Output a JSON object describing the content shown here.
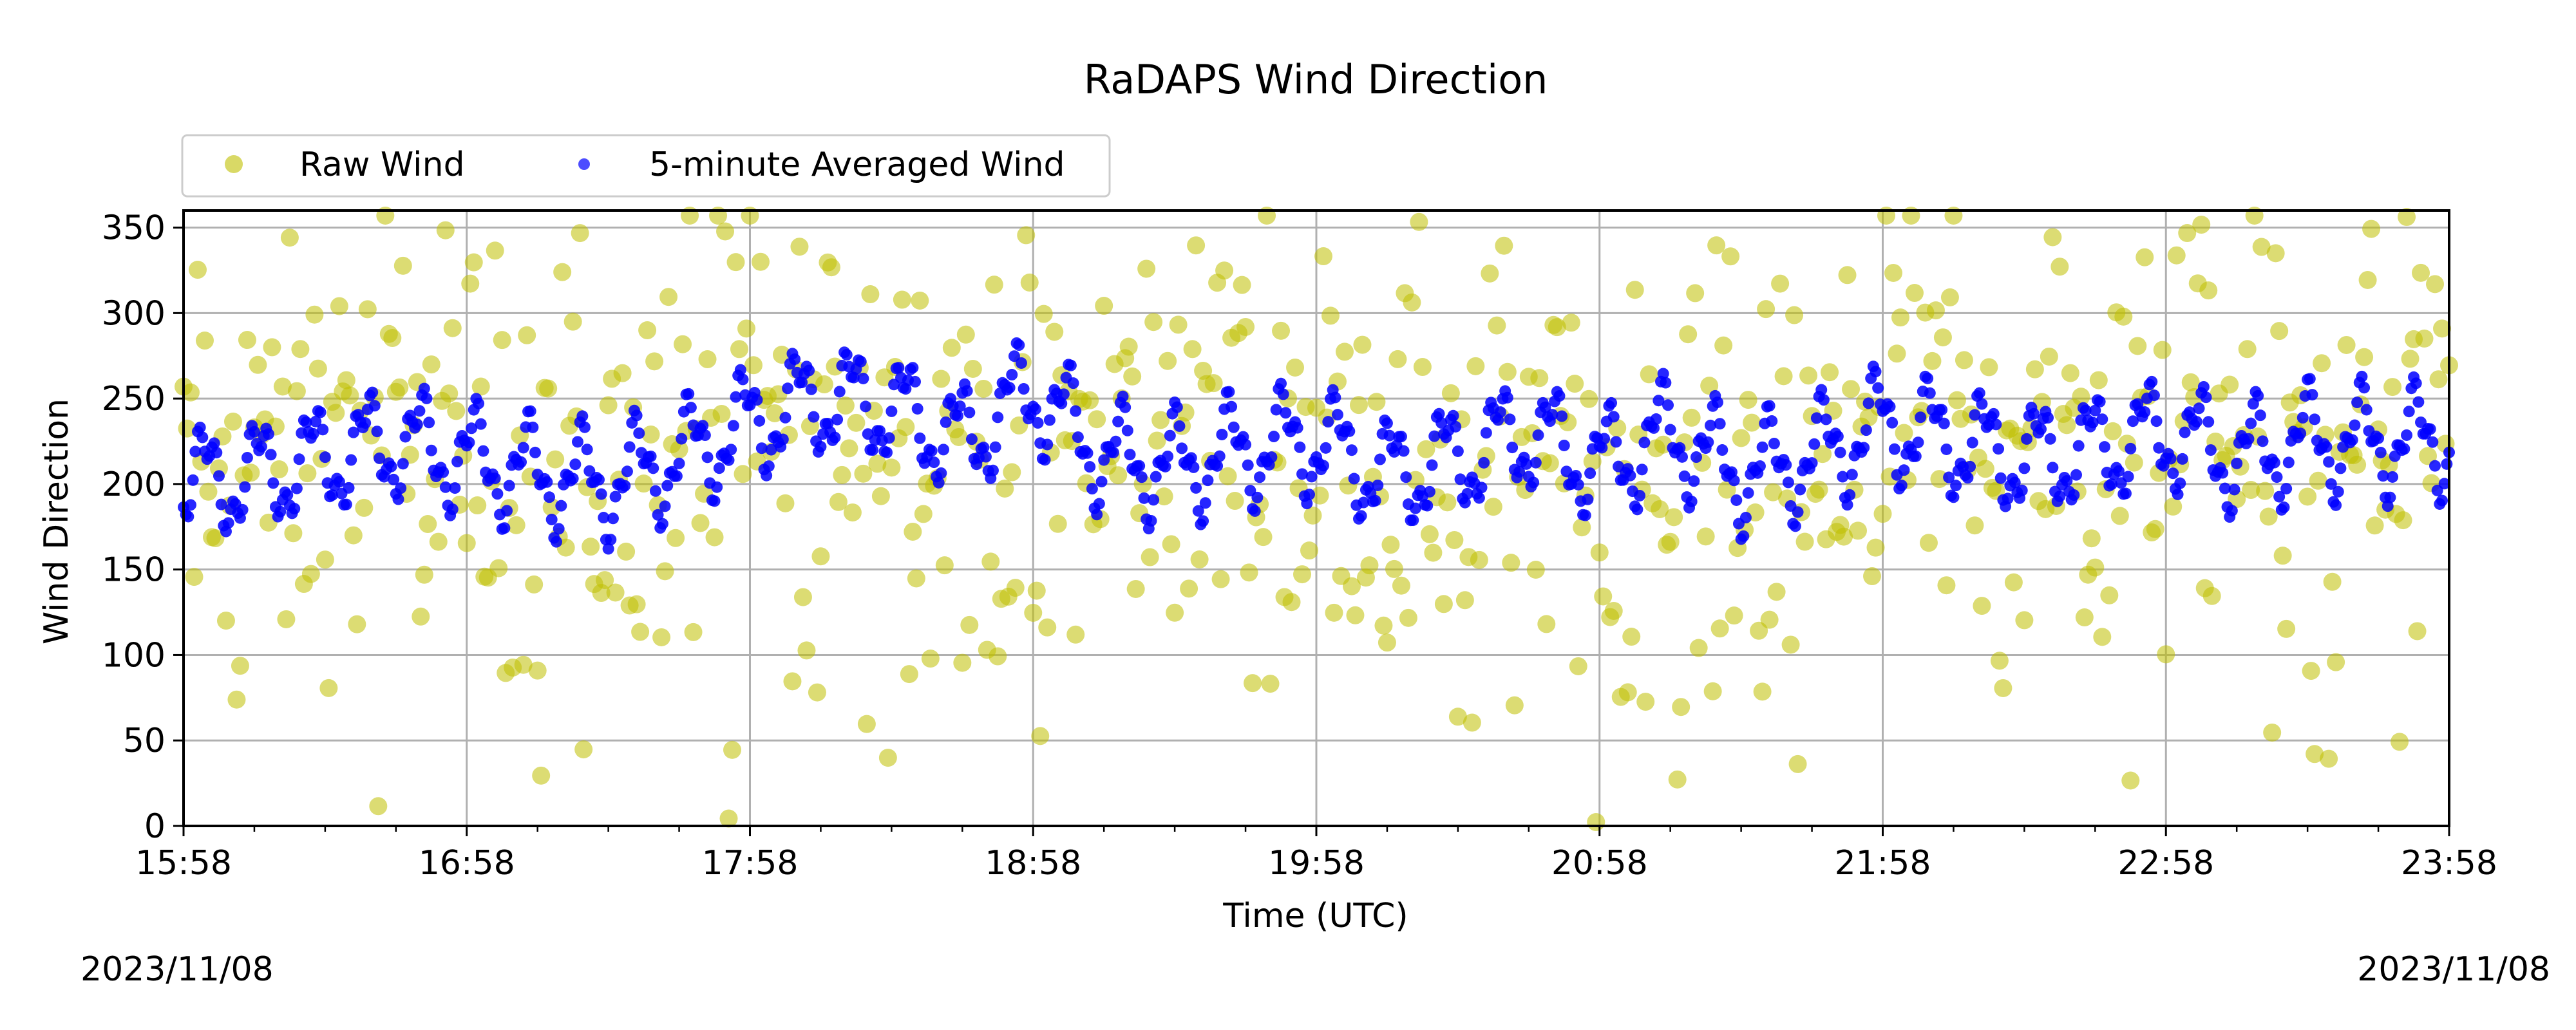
{
  "chart_data": {
    "type": "scatter",
    "title": "RaDAPS Wind Direction",
    "xlabel": "Time (UTC)",
    "ylabel": "Wind Direction",
    "xlim": [
      "15:58",
      "23:58"
    ],
    "ylim": [
      0,
      360
    ],
    "x_ticks": [
      "15:58",
      "16:58",
      "17:58",
      "18:58",
      "19:58",
      "20:58",
      "21:58",
      "22:58",
      "23:58"
    ],
    "y_ticks": [
      0,
      50,
      100,
      150,
      200,
      250,
      300,
      350
    ],
    "grid": true,
    "legend": {
      "placement": "top-left",
      "columns": 2
    },
    "series": [
      {
        "name": "Raw Wind",
        "color": "#bfbf00",
        "marker": "circle",
        "alpha": 0.55,
        "note_sampling": "dense scatter, approx. one point per minute",
        "band_center": [
          205,
          205,
          215,
          225,
          215,
          205,
          200,
          215,
          235,
          250,
          245,
          225,
          205,
          220,
          235,
          245,
          225,
          205,
          215,
          230,
          210,
          200,
          200,
          215,
          235,
          225,
          215,
          215,
          230,
          225,
          215,
          225,
          225
        ]
      },
      {
        "name": "5-minute Averaged Wind",
        "color": "#0000ff",
        "marker": "circle",
        "x": [
          "15:58",
          "16:13",
          "16:28",
          "16:43",
          "16:58",
          "17:13",
          "17:28",
          "17:43",
          "17:58",
          "18:13",
          "18:28",
          "18:43",
          "18:58",
          "19:13",
          "19:28",
          "19:43",
          "19:58",
          "20:13",
          "20:28",
          "20:43",
          "20:58",
          "21:13",
          "21:28",
          "21:43",
          "21:58",
          "22:13",
          "22:28",
          "22:43",
          "22:58",
          "23:13",
          "23:28",
          "23:43",
          "23:58"
        ],
        "y": [
          200,
          205,
          215,
          225,
          215,
          205,
          200,
          215,
          235,
          250,
          245,
          225,
          255,
          215,
          210,
          220,
          225,
          205,
          215,
          230,
          210,
          230,
          205,
          215,
          235,
          225,
          215,
          220,
          230,
          215,
          225,
          225,
          225
        ]
      }
    ]
  },
  "footer": {
    "date_left": "2023/11/08",
    "date_right": "2023/11/08"
  }
}
